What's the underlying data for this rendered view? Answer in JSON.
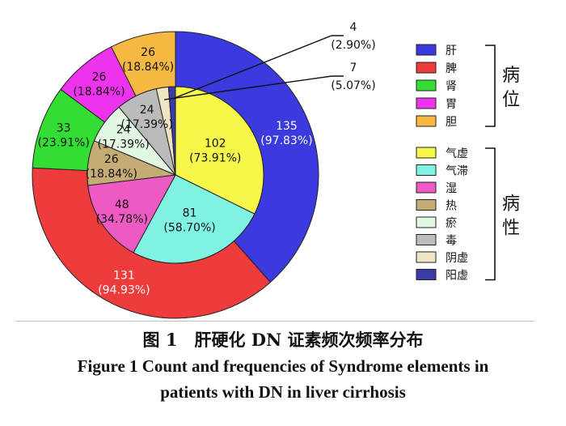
{
  "chart_data": {
    "type": "pie",
    "outer_ring": {
      "legend_group_label": "病位",
      "slices": [
        {
          "name": "肝",
          "value": 135,
          "percent_label": "(97.83%)",
          "color": "#3a3adf"
        },
        {
          "name": "脾",
          "value": 131,
          "percent_label": "(94.93%)",
          "color": "#ee3b3b"
        },
        {
          "name": "肾",
          "value": 33,
          "percent_label": "(23.91%)",
          "color": "#33dd33"
        },
        {
          "name": "胃",
          "value": 26,
          "percent_label": "(18.84%)",
          "color": "#ee33ee"
        },
        {
          "name": "胆",
          "value": 26,
          "percent_label": "(18.84%)",
          "color": "#f5b942"
        }
      ]
    },
    "inner_ring": {
      "legend_group_label": "病性",
      "slices": [
        {
          "name": "气虚",
          "value": 102,
          "percent_label": "(73.91%)",
          "color": "#f7f74a"
        },
        {
          "name": "气滞",
          "value": 81,
          "percent_label": "(58.70%)",
          "color": "#7ff2e2"
        },
        {
          "name": "湿",
          "value": 48,
          "percent_label": "(34.78%)",
          "color": "#ee5ac4"
        },
        {
          "name": "热",
          "value": 26,
          "percent_label": "(18.84%)",
          "color": "#c4ac74"
        },
        {
          "name": "瘀",
          "value": 24,
          "percent_label": "(17.39%)",
          "color": "#e2f8e2"
        },
        {
          "name": "毒",
          "value": 24,
          "percent_label": "(17.39%)",
          "color": "#bbbbbb"
        },
        {
          "name": "阴虚",
          "value": 7,
          "percent_label": "(5.07%)",
          "color": "#efe4c4"
        },
        {
          "name": "阳虚",
          "value": 4,
          "percent_label": "(2.90%)",
          "color": "#3a3aa8"
        }
      ]
    }
  },
  "caption": {
    "cn": "图 1　肝硬化 DN 证素频次频率分布",
    "en_line1": "Figure 1    Count and frequencies of Syndrome elements in",
    "en_line2": "patients with DN in liver cirrhosis"
  }
}
